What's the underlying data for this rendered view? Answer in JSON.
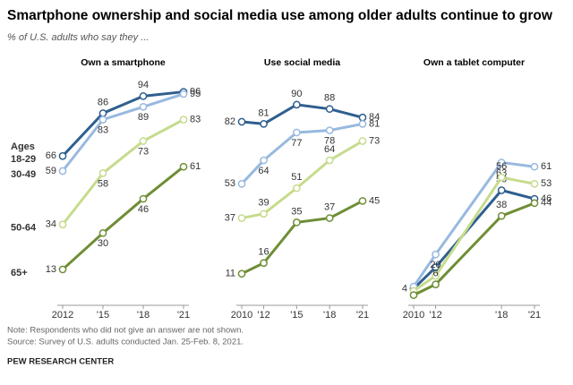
{
  "title": "Smartphone ownership and social media use among older adults continue to grow",
  "subtitle": "% of U.S. adults who say they ...",
  "note": "Note: Respondents who did not give an answer are not shown.",
  "source": "Source: Survey of U.S. adults conducted Jan. 25-Feb. 8, 2021.",
  "credit": "PEW RESEARCH CENTER",
  "chart_data": [
    {
      "type": "line",
      "title": "Own a smartphone",
      "legend_title": "Ages",
      "legend": "left",
      "x": [
        2012,
        2015,
        2018,
        2021
      ],
      "xlim": [
        2012,
        2021
      ],
      "xticks": [
        {
          "value": 2012,
          "label": "2012"
        },
        {
          "value": 2015,
          "label": "'15"
        },
        {
          "value": 2018,
          "label": "'18"
        },
        {
          "value": 2021,
          "label": "'21"
        }
      ],
      "ylim": [
        0,
        100
      ],
      "series": [
        {
          "name": "18-29",
          "color": "#2f5f8f",
          "values": [
            66,
            86,
            94,
            96
          ]
        },
        {
          "name": "30-49",
          "color": "#98b9df",
          "values": [
            59,
            83,
            89,
            95
          ]
        },
        {
          "name": "50-64",
          "color": "#c6db8c",
          "values": [
            34,
            58,
            73,
            83
          ]
        },
        {
          "name": "65+",
          "color": "#6f8e35",
          "values": [
            13,
            30,
            46,
            61
          ]
        }
      ]
    },
    {
      "type": "line",
      "title": "Use social media",
      "x": [
        2010,
        2012,
        2015,
        2018,
        2021
      ],
      "xlim": [
        2010,
        2021
      ],
      "xticks": [
        {
          "value": 2010,
          "label": "2010"
        },
        {
          "value": 2012,
          "label": "'12"
        },
        {
          "value": 2015,
          "label": "'15"
        },
        {
          "value": 2018,
          "label": "'18"
        },
        {
          "value": 2021,
          "label": "'21"
        }
      ],
      "ylim": [
        0,
        100
      ],
      "series": [
        {
          "color": "#2f5f8f",
          "values": [
            82,
            81,
            90,
            88,
            84
          ]
        },
        {
          "color": "#98b9df",
          "values": [
            53,
            64,
            77,
            78,
            81
          ]
        },
        {
          "color": "#c6db8c",
          "values": [
            37,
            39,
            51,
            64,
            73
          ]
        },
        {
          "color": "#6f8e35",
          "values": [
            11,
            16,
            35,
            37,
            45
          ]
        }
      ]
    },
    {
      "type": "line",
      "title": "Own a tablet computer",
      "x": [
        2010,
        2012,
        2018,
        2021
      ],
      "xlim": [
        2010,
        2021
      ],
      "xticks": [
        {
          "value": 2010,
          "label": "2010"
        },
        {
          "value": 2012,
          "label": "'12"
        },
        {
          "value": 2018,
          "label": "'18"
        },
        {
          "value": 2021,
          "label": "'21"
        }
      ],
      "ylim": [
        0,
        100
      ],
      "series": [
        {
          "color": "#2f5f8f",
          "values": [
            4,
            14,
            50,
            46
          ],
          "value_labels": [
            "4",
            null,
            "50",
            "46"
          ]
        },
        {
          "color": "#98b9df",
          "values": [
            5,
            20,
            63,
            61
          ],
          "value_labels": [
            null,
            "20",
            "63",
            "61"
          ]
        },
        {
          "color": "#c6db8c",
          "values": [
            3,
            10,
            56,
            53
          ],
          "value_labels": [
            null,
            null,
            "56",
            "53"
          ]
        },
        {
          "color": "#6f8e35",
          "values": [
            1,
            6,
            38,
            44
          ],
          "value_labels": [
            null,
            "6",
            "38",
            "44"
          ]
        }
      ]
    }
  ]
}
